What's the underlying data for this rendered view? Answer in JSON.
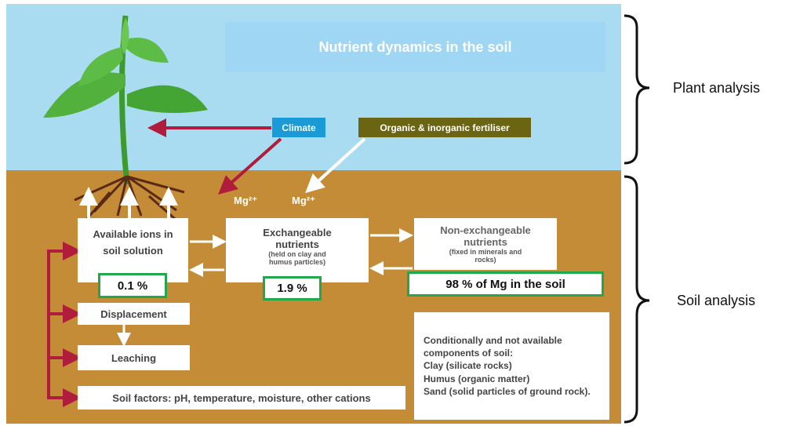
{
  "title": "Nutrient dynamics in the soil",
  "sources": {
    "climate": "Climate",
    "fertiliser": "Organic & inorganic fertiliser"
  },
  "ions": [
    "Mg²⁺",
    "Mg²⁺"
  ],
  "pools": [
    {
      "label": "Available ions in soil solution",
      "share": "0.1 %"
    },
    {
      "label": "Exchangeable nutrients",
      "note": "(held on clay and humus particles)",
      "share": "1.9 %"
    },
    {
      "label": "Non-exchangeable nutrients",
      "note": "(fixed in minerals and rocks)",
      "share": "98 % of Mg in the soil"
    }
  ],
  "processes": [
    "Displacement",
    "Leaching"
  ],
  "factors": "Soil factors: pH, temperature, moisture, other cations",
  "components": {
    "heading": "Conditionally and not available components of soil:",
    "items": [
      "Clay (silicate rocks)",
      "Humus (organic matter)",
      "Sand (solid particles of ground rock)."
    ]
  },
  "brackets": [
    "Plant analysis",
    "Soil analysis"
  ]
}
